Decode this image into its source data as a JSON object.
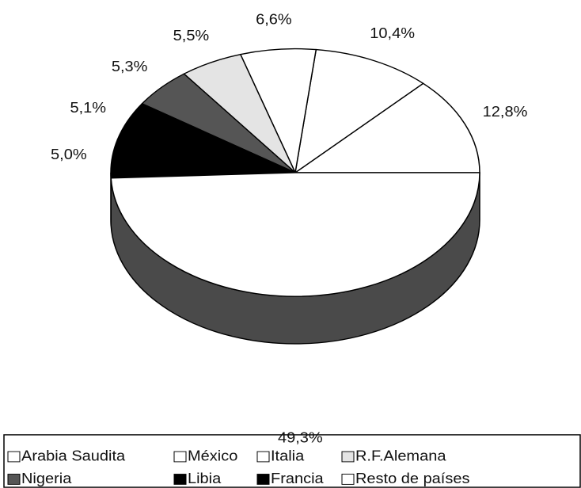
{
  "chart_data": {
    "type": "pie",
    "categories": [
      "Arabia Saudita",
      "México",
      "Italia",
      "R.F.Alemana",
      "Nigeria",
      "Libia",
      "Francia",
      "Resto de países"
    ],
    "values": [
      12.8,
      10.4,
      6.6,
      5.5,
      5.3,
      5.1,
      5.0,
      49.3
    ],
    "value_labels": [
      "12,8%",
      "10,4%",
      "6,6%",
      "5,5%",
      "5,3%",
      "5,1%",
      "5,0%",
      "49,3%"
    ],
    "colors": [
      "#ffffff",
      "#ffffff",
      "#ffffff",
      "#e4e4e4",
      "#555555",
      "#000000",
      "#000000",
      "#ffffff"
    ],
    "legend": "bottom"
  }
}
